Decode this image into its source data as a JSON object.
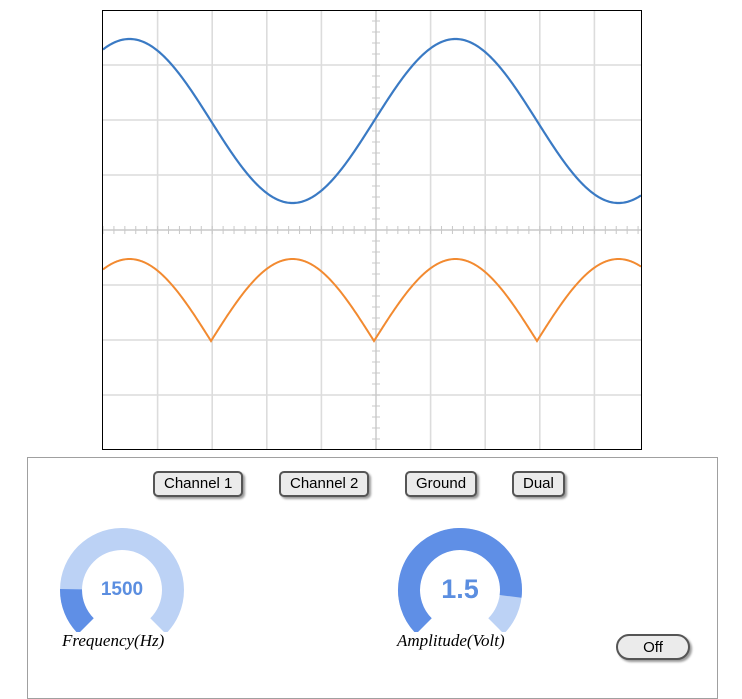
{
  "scope": {
    "grid_divisions": {
      "x": 10,
      "y": 8
    },
    "background": "#ffffff",
    "grid_color": "#dcdcdc",
    "axis_color": "#c8c8c8",
    "channels": [
      {
        "name": "Channel 1",
        "waveform": "sine",
        "color": "#3a7ac4",
        "cycles_visible": 1.5,
        "phase": "cosine"
      },
      {
        "name": "Channel 2",
        "waveform": "rectified-sine",
        "color": "#f28a30"
      }
    ]
  },
  "controls": {
    "buttons": [
      {
        "id": "channel1",
        "label": "Channel 1"
      },
      {
        "id": "channel2",
        "label": "Channel 2"
      },
      {
        "id": "ground",
        "label": "Ground"
      },
      {
        "id": "dual",
        "label": "Dual"
      }
    ],
    "frequency": {
      "value": "1500",
      "label": "Frequency(Hz)",
      "fill_fraction": 0.17,
      "track_color": "#bcd2f5",
      "fill_color": "#5f8fe6"
    },
    "amplitude": {
      "value": "1.5",
      "label": "Amplitude(Volt)",
      "fill_fraction": 0.86,
      "track_color": "#bcd2f5",
      "fill_color": "#5f8fe6"
    },
    "power_button": {
      "label": "Off"
    }
  }
}
